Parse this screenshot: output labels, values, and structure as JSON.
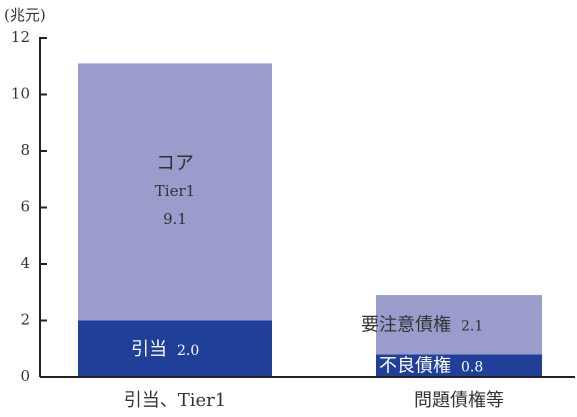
{
  "chart_data": {
    "type": "stacked_bar",
    "y_label": "(兆元)",
    "categories": [
      "引当、Tier1",
      "問題債権等"
    ],
    "series": [
      {
        "color": "#1f3f99",
        "text_color": "#ffffff",
        "labels": [
          "引当",
          "不良債権"
        ],
        "values": [
          2.0,
          0.8
        ],
        "value_labels": [
          "2.0",
          "0.8"
        ]
      },
      {
        "color": "#9a9ccc",
        "text_color": "#333333",
        "labels": [
          [
            "コア",
            "Tier1"
          ],
          "要注意債権"
        ],
        "values": [
          9.1,
          2.1
        ],
        "value_labels": [
          "9.1",
          "2.1"
        ]
      }
    ],
    "ylim": [
      0,
      12
    ],
    "yticks": [
      0,
      2,
      4,
      6,
      8,
      10,
      12
    ]
  }
}
